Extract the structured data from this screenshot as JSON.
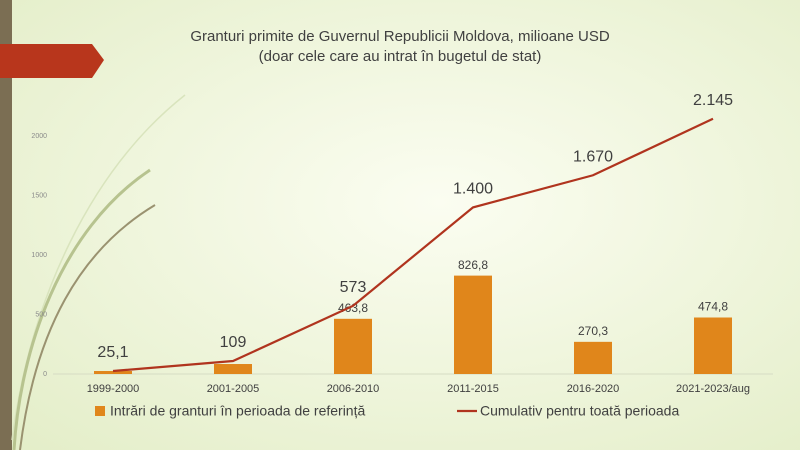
{
  "chart_data": {
    "type": "combo",
    "title": "Granturi primite de Guvernul Republicii Moldova, milioane USD",
    "subtitle": "(doar cele care au intrat în bugetul de stat)",
    "categories": [
      "1999-2000",
      "2001-2005",
      "2006-2010",
      "2011-2015",
      "2016-2020",
      "2021-2023/aug"
    ],
    "series": [
      {
        "name": "Intrări de granturi în perioada de referință",
        "type": "bar",
        "color": "#e0861b",
        "values": [
          25.1,
          83.9,
          463.8,
          826.8,
          270.3,
          474.8
        ],
        "value_labels": [
          null,
          null,
          "463,8",
          "826,8",
          "270,3",
          "474,8"
        ]
      },
      {
        "name": "Cumulativ pentru toată perioada",
        "type": "line",
        "color": "#b0341e",
        "values": [
          25.1,
          109,
          573,
          1400,
          1670,
          2145
        ],
        "value_labels": [
          "25,1",
          "109",
          "573",
          "1.400",
          "1.670",
          "2.145"
        ]
      }
    ],
    "ylim": [
      0,
      2500
    ],
    "yticks": [
      0,
      500,
      1000,
      1500,
      2000
    ],
    "grid": false,
    "legend": "bottom"
  }
}
